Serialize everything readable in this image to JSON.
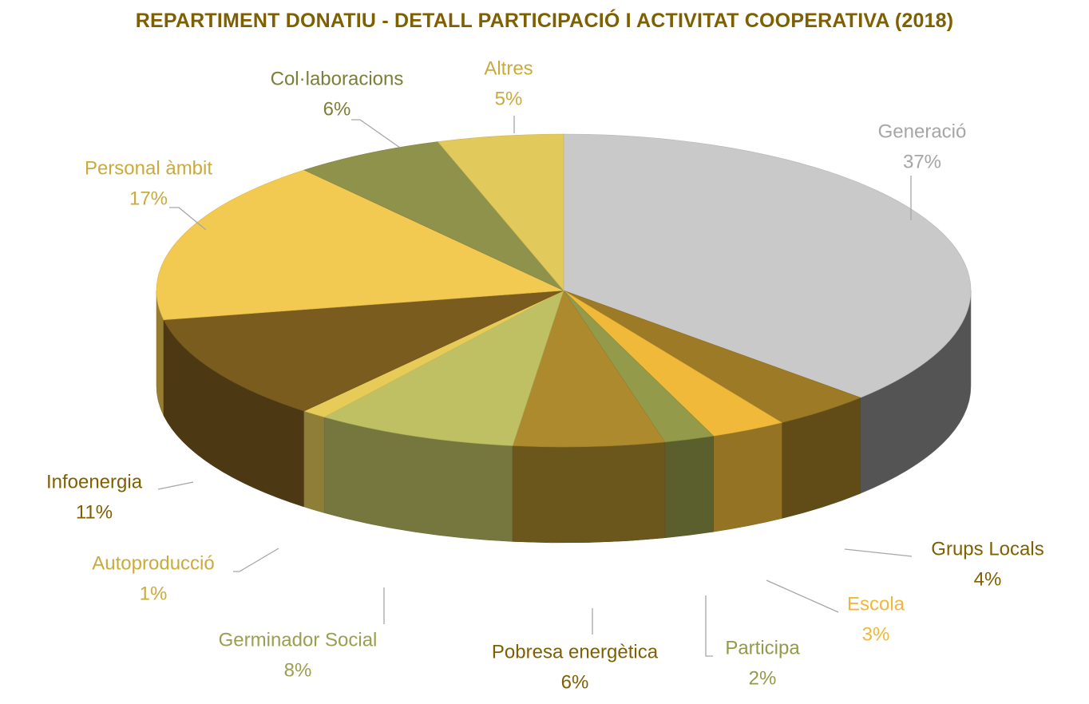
{
  "chart_data": {
    "type": "pie",
    "title": "REPARTIMENT DONATIU - DETALL PARTICIPACIÓ I ACTIVITAT COOPERATIVA (2018)",
    "title_color": "#7f6000",
    "categories": [
      "Generació",
      "Grups Locals",
      "Escola",
      "Participa",
      "Pobresa energètica",
      "Germinador Social",
      "Autoproducció",
      "Infoenergia",
      "Personal àmbit",
      "Col·laboracions",
      "Altres"
    ],
    "values": [
      37,
      4,
      3,
      2,
      6,
      8,
      1,
      11,
      17,
      6,
      5
    ],
    "value_labels": [
      "37%",
      "4%",
      "3%",
      "2%",
      "6%",
      "8%",
      "1%",
      "11%",
      "17%",
      "6%",
      "5%"
    ],
    "colors": [
      "#c9c9c9",
      "#9c7a26",
      "#f0b93a",
      "#939a49",
      "#ad8a2d",
      "#bfc064",
      "#e6cb58",
      "#7b5c1f",
      "#f2c951",
      "#8f924a",
      "#e2c95c"
    ],
    "label_colors": [
      "#a6a6a6",
      "#7f6000",
      "#f0b83a",
      "#939a49",
      "#7f6000",
      "#9a9f50",
      "#c9ab3c",
      "#7f6000",
      "#c9ab3c",
      "#7b7f36",
      "#c9ab3c"
    ],
    "style": "3d-pie",
    "start": "top",
    "direction": "clockwise",
    "legend": "none"
  }
}
